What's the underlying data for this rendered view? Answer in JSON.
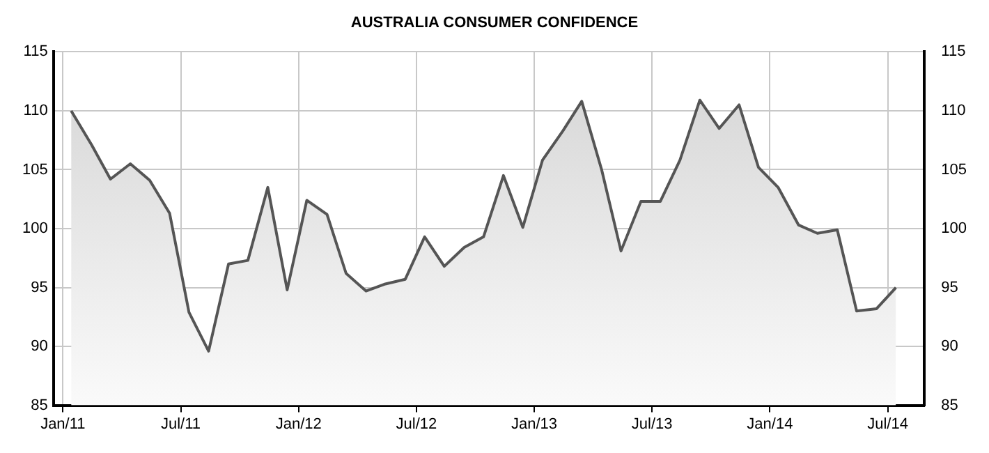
{
  "chart_data": {
    "type": "area",
    "title": "AUSTRALIA CONSUMER CONFIDENCE",
    "x": [
      "2011-01-14",
      "2011-02-14",
      "2011-03-14",
      "2011-04-14",
      "2011-05-14",
      "2011-06-14",
      "2011-07-14",
      "2011-08-14",
      "2011-09-14",
      "2011-10-14",
      "2011-11-14",
      "2011-12-14",
      "2012-01-14",
      "2012-02-14",
      "2012-03-14",
      "2012-04-14",
      "2012-05-14",
      "2012-06-14",
      "2012-07-14",
      "2012-08-14",
      "2012-09-14",
      "2012-10-14",
      "2012-11-14",
      "2012-12-14",
      "2013-01-14",
      "2013-02-14",
      "2013-03-14",
      "2013-04-14",
      "2013-05-14",
      "2013-06-14",
      "2013-07-14",
      "2013-08-14",
      "2013-09-14",
      "2013-10-14",
      "2013-11-14",
      "2013-12-14",
      "2014-01-14",
      "2014-02-14",
      "2014-03-14",
      "2014-04-14",
      "2014-05-14",
      "2014-06-14",
      "2014-07-14"
    ],
    "series": [
      {
        "color": "#555555",
        "values": [
          110.0,
          107.1,
          104.2,
          105.5,
          104.1,
          101.3,
          92.9,
          89.6,
          97.0,
          97.3,
          103.5,
          94.8,
          102.4,
          101.2,
          96.2,
          94.7,
          95.3,
          95.7,
          99.3,
          96.8,
          98.4,
          99.3,
          104.5,
          100.1,
          105.8,
          108.3,
          110.8,
          105.0,
          98.1,
          102.3,
          102.3,
          105.8,
          110.9,
          108.5,
          110.5,
          105.2,
          103.5,
          100.3,
          99.6,
          99.9,
          93.0,
          93.2,
          95.0
        ]
      }
    ],
    "xlim": [
      "2010-12-17",
      "2014-08-28"
    ],
    "xticks": [
      {
        "value": "2011-01",
        "label": "Jan/11"
      },
      {
        "value": "2011-07",
        "label": "Jul/11"
      },
      {
        "value": "2012-01",
        "label": "Jan/12"
      },
      {
        "value": "2012-07",
        "label": "Jul/12"
      },
      {
        "value": "2013-01",
        "label": "Jan/13"
      },
      {
        "value": "2013-07",
        "label": "Jul/13"
      },
      {
        "value": "2014-01",
        "label": "Jan/14"
      },
      {
        "value": "2014-07",
        "label": "Jul/14"
      }
    ],
    "ylim": [
      85,
      115
    ],
    "yticks": [
      85,
      90,
      95,
      100,
      105,
      110,
      115
    ],
    "y2lim": [
      85,
      115
    ],
    "y2ticks": [
      85,
      90,
      95,
      100,
      105,
      110,
      115
    ],
    "grid": true,
    "legend": false,
    "marker": "none",
    "line_style": "solid"
  }
}
